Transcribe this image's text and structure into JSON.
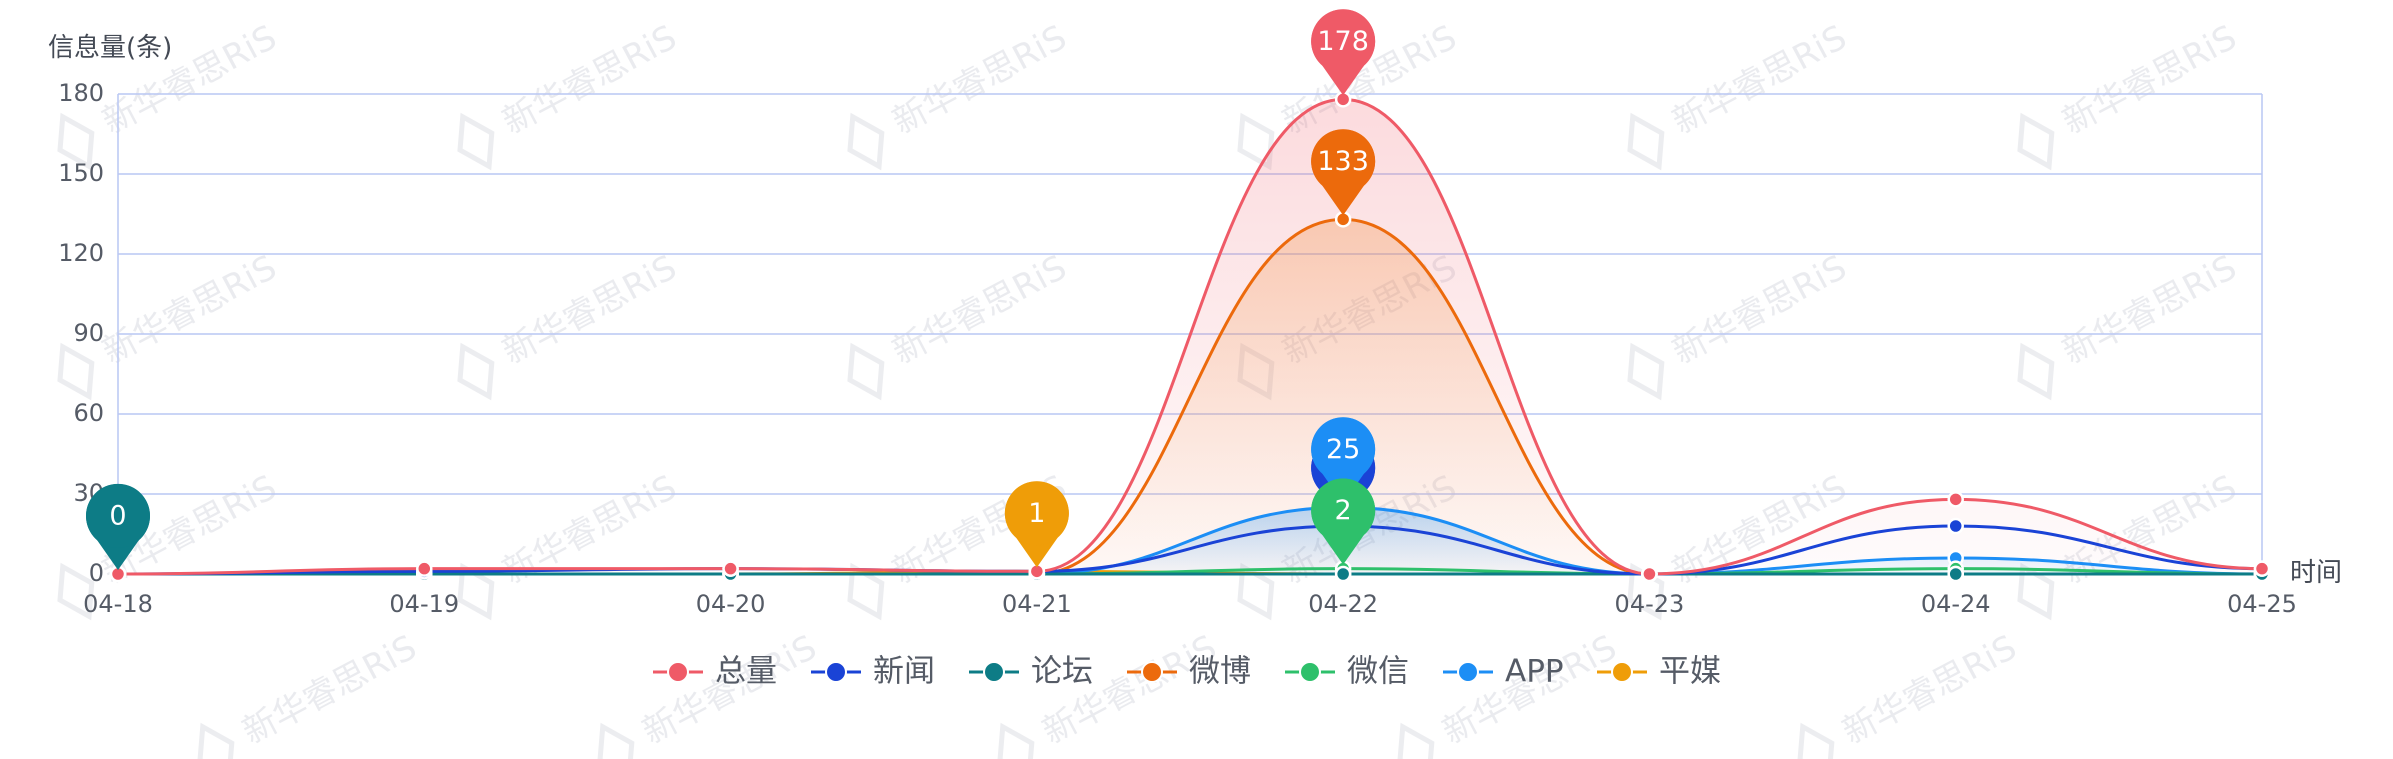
{
  "chart_data": {
    "type": "line",
    "ylabel": "信息量(条)",
    "xlabel": "时间",
    "categories": [
      "04-18",
      "04-19",
      "04-20",
      "04-21",
      "04-22",
      "04-23",
      "04-24",
      "04-25"
    ],
    "ylim": [
      0,
      180
    ],
    "yticks": [
      0,
      30,
      60,
      90,
      120,
      150,
      180
    ],
    "grid": true,
    "legend_position": "bottom",
    "smooth": true,
    "series": [
      {
        "name": "总量",
        "color": "#ef5a67",
        "values": [
          0,
          2,
          2,
          1,
          178,
          0,
          28,
          2
        ],
        "area": true
      },
      {
        "name": "新闻",
        "color": "#1a43d6",
        "values": [
          0,
          1,
          2,
          1,
          18,
          0,
          18,
          2
        ],
        "area": false
      },
      {
        "name": "论坛",
        "color": "#0d7c86",
        "values": [
          0,
          0,
          0,
          0,
          0,
          0,
          0,
          0
        ],
        "area": false
      },
      {
        "name": "微博",
        "color": "#ec6a0c",
        "values": [
          0,
          0,
          0,
          0,
          133,
          0,
          0,
          0
        ],
        "area": true
      },
      {
        "name": "微信",
        "color": "#2ec06b",
        "values": [
          0,
          0,
          0,
          0,
          2,
          0,
          2,
          0
        ],
        "area": false
      },
      {
        "name": "APP",
        "color": "#1c8ef5",
        "values": [
          0,
          0,
          0,
          0,
          25,
          0,
          6,
          0
        ],
        "area": true
      },
      {
        "name": "平媒",
        "color": "#ef9d08",
        "values": [
          0,
          0,
          0,
          1,
          0,
          0,
          0,
          0
        ],
        "area": false
      }
    ],
    "markers": [
      {
        "series": "总量",
        "category": "04-22",
        "value": 178,
        "label": "178"
      },
      {
        "series": "微博",
        "category": "04-22",
        "value": 133,
        "label": "133"
      },
      {
        "series": "新闻",
        "category": "04-22",
        "value": 18,
        "label": ""
      },
      {
        "series": "APP",
        "category": "04-22",
        "value": 25,
        "label": "25"
      },
      {
        "series": "微信",
        "category": "04-22",
        "value": 2,
        "label": "2"
      },
      {
        "series": "论坛",
        "category": "04-18",
        "value": 0,
        "label": "0"
      },
      {
        "series": "平媒",
        "category": "04-21",
        "value": 1,
        "label": "1"
      }
    ],
    "watermark": "新华睿思RiS"
  }
}
